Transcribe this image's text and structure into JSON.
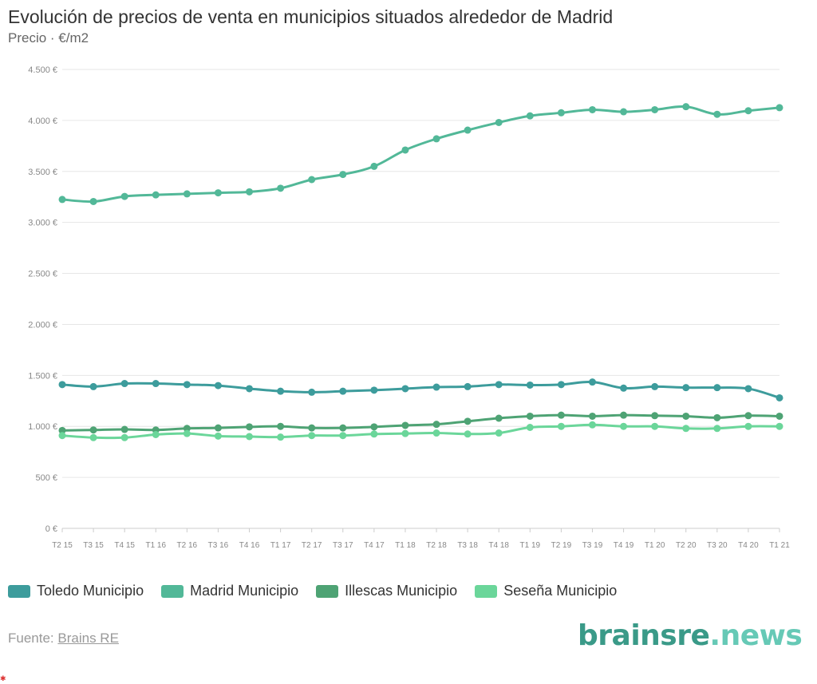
{
  "header": {
    "title": "Evolución de precios de venta en municipios situados alrededor de Madrid",
    "subtitle": "Precio · €/m2"
  },
  "chart_data": {
    "type": "line",
    "categories": [
      "T2 15",
      "T3 15",
      "T4 15",
      "T1 16",
      "T2 16",
      "T3 16",
      "T4 16",
      "T1 17",
      "T2 17",
      "T3 17",
      "T4 17",
      "T1 18",
      "T2 18",
      "T3 18",
      "T4 18",
      "T1 19",
      "T2 19",
      "T3 19",
      "T4 19",
      "T1 20",
      "T2 20",
      "T3 20",
      "T4 20",
      "T1 21"
    ],
    "ylim": [
      0,
      4500
    ],
    "yticks": [
      0,
      500,
      1000,
      1500,
      2000,
      2500,
      3000,
      3500,
      4000,
      4500
    ],
    "ytick_labels": [
      "0 €",
      "500 €",
      "1.000 €",
      "1.500 €",
      "2.000 €",
      "2.500 €",
      "3.000 €",
      "3.500 €",
      "4.000 €",
      "4.500 €"
    ],
    "grid": true,
    "legend_position": "bottom",
    "series": [
      {
        "name": "Toledo Municipio",
        "color": "#3d9c9c",
        "values": [
          1410,
          1390,
          1420,
          1420,
          1410,
          1400,
          1370,
          1345,
          1335,
          1345,
          1355,
          1370,
          1385,
          1390,
          1410,
          1405,
          1410,
          1435,
          1375,
          1390,
          1380,
          1380,
          1370,
          1280
        ]
      },
      {
        "name": "Madrid Municipio",
        "color": "#52b898",
        "values": [
          3225,
          3205,
          3255,
          3270,
          3280,
          3290,
          3300,
          3335,
          3420,
          3470,
          3550,
          3710,
          3820,
          3905,
          3980,
          4045,
          4075,
          4105,
          4085,
          4105,
          4135,
          4060,
          4095,
          4125
        ]
      },
      {
        "name": "Illescas Municipio",
        "color": "#4ea374",
        "values": [
          960,
          965,
          970,
          965,
          980,
          985,
          995,
          1000,
          985,
          985,
          995,
          1010,
          1020,
          1050,
          1080,
          1100,
          1110,
          1100,
          1110,
          1105,
          1100,
          1085,
          1105,
          1100
        ]
      },
      {
        "name": "Seseña Municipio",
        "color": "#6bd69a",
        "values": [
          910,
          890,
          890,
          920,
          930,
          905,
          900,
          895,
          910,
          910,
          925,
          930,
          935,
          925,
          935,
          990,
          1000,
          1015,
          1000,
          1000,
          980,
          980,
          1000,
          1000
        ]
      }
    ]
  },
  "legend_title": "",
  "footer": {
    "source_label": "Fuente:",
    "source_link": "Brains RE",
    "brand_part1": "brainsre",
    "brand_part2": ".news"
  }
}
